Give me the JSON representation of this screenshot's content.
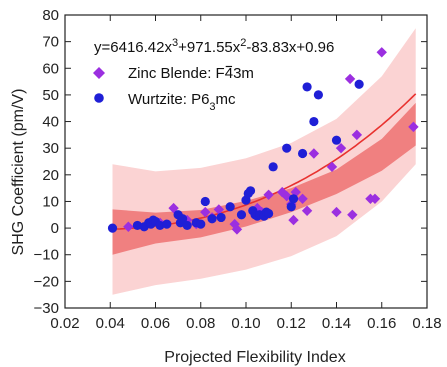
{
  "chart_data": {
    "type": "scatter",
    "title": "",
    "xlabel": "Projected Flexibility Index",
    "ylabel": "SHG Coefficient (pm/V)",
    "xlim": [
      0.02,
      0.18
    ],
    "ylim": [
      -30,
      80
    ],
    "xticks": [
      0.02,
      0.04,
      0.06,
      0.08,
      0.1,
      0.12,
      0.14,
      0.16,
      0.18
    ],
    "xtick_labels": [
      "0.02",
      "0.04",
      "0.06",
      "0.08",
      "0.10",
      "0.12",
      "0.14",
      "0.16",
      "0.18"
    ],
    "yticks": [
      -30,
      -20,
      -10,
      0,
      10,
      20,
      30,
      40,
      50,
      60,
      70,
      80
    ],
    "ytick_labels": [
      "−30",
      "−20",
      "−10",
      "0",
      "10",
      "20",
      "30",
      "40",
      "50",
      "60",
      "70",
      "80"
    ],
    "grid": false,
    "legend_position": "top-left",
    "annotation": {
      "text": "y=6416.42x³+971.55x²-83.83x+0.96",
      "base": "y=6416.42x",
      "sup1": "3",
      "mid1": "+971.55x",
      "sup2": "2",
      "tail": "-83.83x+0.96"
    },
    "fit": {
      "label": "y=6416.42x³+971.55x²-83.83x+0.96",
      "coefficients": [
        6416.42,
        971.55,
        -83.83,
        0.96
      ],
      "x_range": [
        0.041,
        0.175
      ],
      "color": "#e8322f",
      "confidence_band": {
        "color": "#f08080",
        "x": [
          0.041,
          0.06,
          0.08,
          0.1,
          0.12,
          0.14,
          0.16,
          0.175
        ],
        "upper": [
          7.0,
          5.8,
          6.8,
          10.2,
          15.0,
          22.0,
          33.5,
          47.0
        ],
        "lower": [
          -10.0,
          -5.8,
          -3.5,
          0.6,
          6.0,
          12.8,
          21.5,
          31.0
        ]
      },
      "prediction_band": {
        "color": "#fbd3d3",
        "x": [
          0.041,
          0.06,
          0.08,
          0.1,
          0.12,
          0.14,
          0.16,
          0.175
        ],
        "upper": [
          24.0,
          21.3,
          22.6,
          26.2,
          32.0,
          41.0,
          57.0,
          75.0
        ],
        "lower": [
          -25.0,
          -21.4,
          -19.0,
          -15.6,
          -10.5,
          -3.0,
          10.0,
          24.0
        ]
      }
    },
    "series": [
      {
        "name": "Zinc Blende: F4̅3m",
        "name_parts": [
          "Zinc Blende: F",
          "4",
          "3m"
        ],
        "marker": "diamond",
        "color": "#9b2fe0",
        "x": [
          0.048,
          0.062,
          0.068,
          0.074,
          0.078,
          0.082,
          0.085,
          0.088,
          0.095,
          0.096,
          0.105,
          0.107,
          0.11,
          0.116,
          0.118,
          0.12,
          0.121,
          0.122,
          0.125,
          0.127,
          0.13,
          0.138,
          0.14,
          0.142,
          0.146,
          0.147,
          0.149,
          0.155,
          0.157,
          0.16,
          0.174
        ],
        "y": [
          0.5,
          2.0,
          7.5,
          3.0,
          1.5,
          6.0,
          4.0,
          7.0,
          1.5,
          -0.5,
          7.5,
          6.0,
          12.5,
          13.5,
          12.0,
          9.0,
          3.0,
          13.5,
          11.0,
          6.5,
          28.0,
          23.0,
          6.0,
          30.0,
          56.0,
          5.0,
          35.0,
          11.0,
          11.0,
          66.0,
          38.0
        ]
      },
      {
        "name": "Wurtzite: P6₃mc",
        "name_parts": [
          "Wurtzite: P6",
          "3",
          "mc"
        ],
        "marker": "circle",
        "color": "#1f1fd6",
        "x": [
          0.041,
          0.052,
          0.055,
          0.057,
          0.058,
          0.059,
          0.06,
          0.062,
          0.065,
          0.07,
          0.071,
          0.072,
          0.074,
          0.078,
          0.08,
          0.082,
          0.085,
          0.089,
          0.093,
          0.098,
          0.1,
          0.101,
          0.102,
          0.103,
          0.104,
          0.105,
          0.106,
          0.108,
          0.109,
          0.11,
          0.112,
          0.118,
          0.12,
          0.121,
          0.125,
          0.127,
          0.13,
          0.132,
          0.14,
          0.15
        ],
        "y": [
          0.0,
          1.0,
          0.5,
          2.0,
          1.5,
          3.0,
          2.5,
          1.0,
          1.5,
          5.0,
          2.0,
          3.5,
          1.0,
          2.0,
          1.5,
          10.0,
          3.5,
          4.0,
          8.0,
          5.0,
          10.5,
          13.0,
          14.0,
          6.5,
          5.0,
          4.5,
          5.0,
          4.5,
          6.0,
          5.5,
          23.0,
          30.0,
          8.0,
          11.0,
          28.0,
          53.0,
          40.0,
          50.0,
          33.0,
          54.0
        ]
      }
    ]
  }
}
